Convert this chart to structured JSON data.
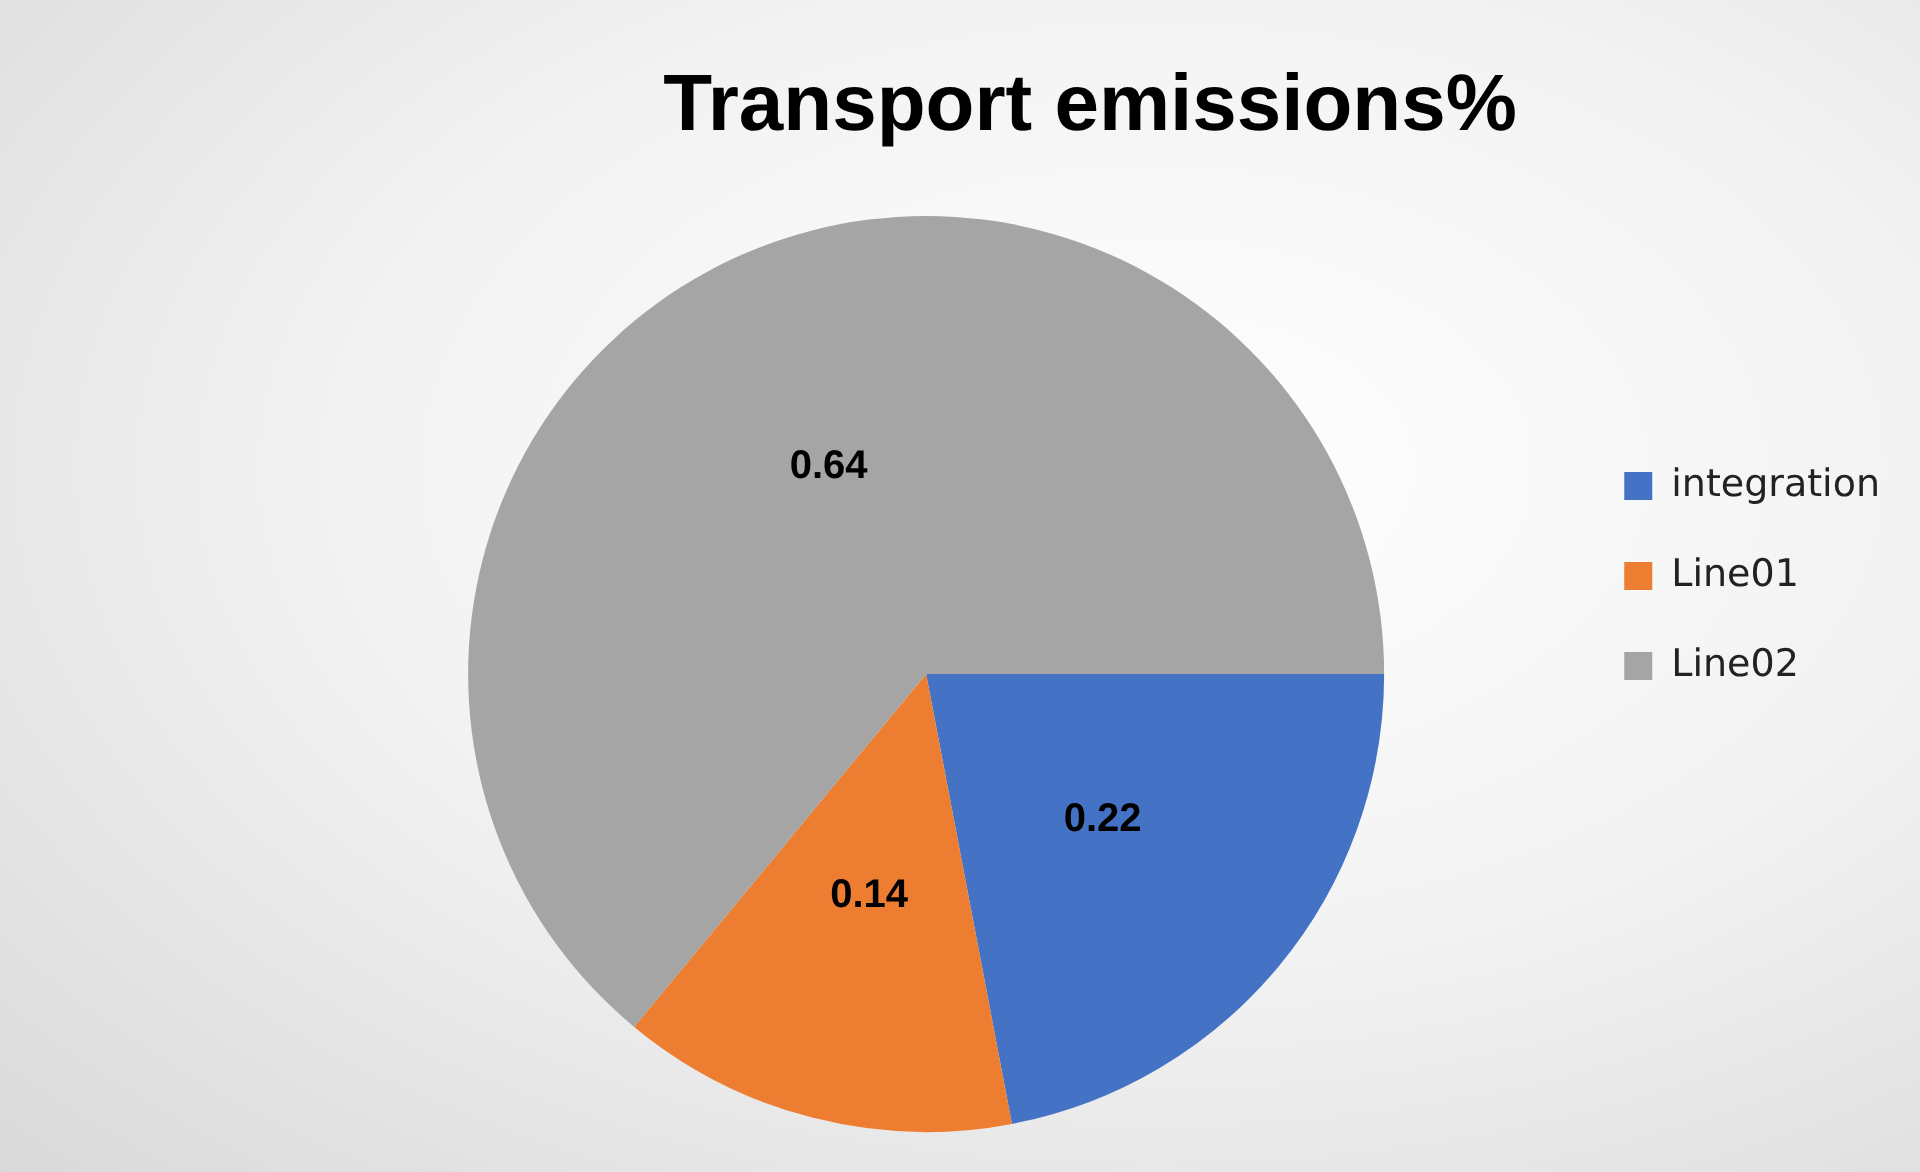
{
  "chart_data": {
    "type": "pie",
    "title": "Transport emissions%",
    "categories": [
      "integration",
      "Line01",
      "Line02"
    ],
    "values": [
      0.22,
      0.14,
      0.64
    ],
    "colors": [
      "#4472c4",
      "#ed7d31",
      "#a5a5a5"
    ],
    "data_labels": true,
    "legend": "right"
  }
}
